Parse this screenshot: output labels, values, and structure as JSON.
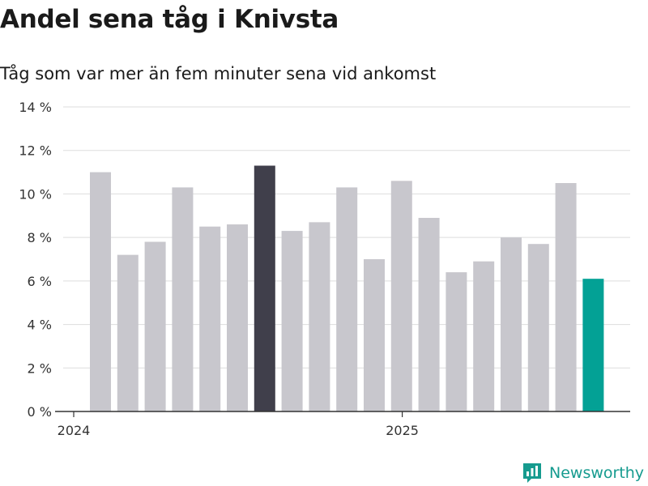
{
  "title": "Andel sena tåg i Knivsta",
  "subtitle": "Tåg som var mer än fem minuter sena vid ankomst",
  "brand": {
    "name": "Newsworthy",
    "icon": "newsworthy-logo-icon"
  },
  "colors": {
    "bar": "#c8c7cd",
    "highlight_max": "#403f4b",
    "highlight_latest": "#03a195",
    "grid": "#dddddd",
    "axis": "#333333",
    "brand": "#169b8f"
  },
  "chart_data": {
    "type": "bar",
    "x": [
      "2024-01",
      "2024-02",
      "2024-03",
      "2024-04",
      "2024-05",
      "2024-06",
      "2024-07",
      "2024-08",
      "2024-09",
      "2024-10",
      "2024-11",
      "2024-12",
      "2025-01",
      "2025-02",
      "2025-03",
      "2025-04",
      "2025-05",
      "2025-06",
      "2025-07"
    ],
    "values": [
      11.0,
      7.2,
      7.8,
      10.3,
      8.5,
      8.6,
      11.3,
      8.3,
      8.7,
      10.3,
      7.0,
      10.6,
      8.9,
      6.4,
      6.9,
      8.0,
      7.7,
      10.5,
      6.1
    ],
    "highlight": {
      "2024-07": "highlight_max",
      "2025-07": "highlight_latest"
    },
    "ylim": [
      0,
      14
    ],
    "yticks": [
      0,
      2,
      4,
      6,
      8,
      10,
      12,
      14
    ],
    "ytick_labels": [
      "0 %",
      "2 %",
      "4 %",
      "6 %",
      "8 %",
      "10 %",
      "12 %",
      "14 %"
    ],
    "xticks": [
      {
        "label": "2024",
        "at": "2024-01"
      },
      {
        "label": "2025",
        "at": "2025-01"
      }
    ],
    "grid": true,
    "xlabel": "",
    "ylabel": ""
  }
}
